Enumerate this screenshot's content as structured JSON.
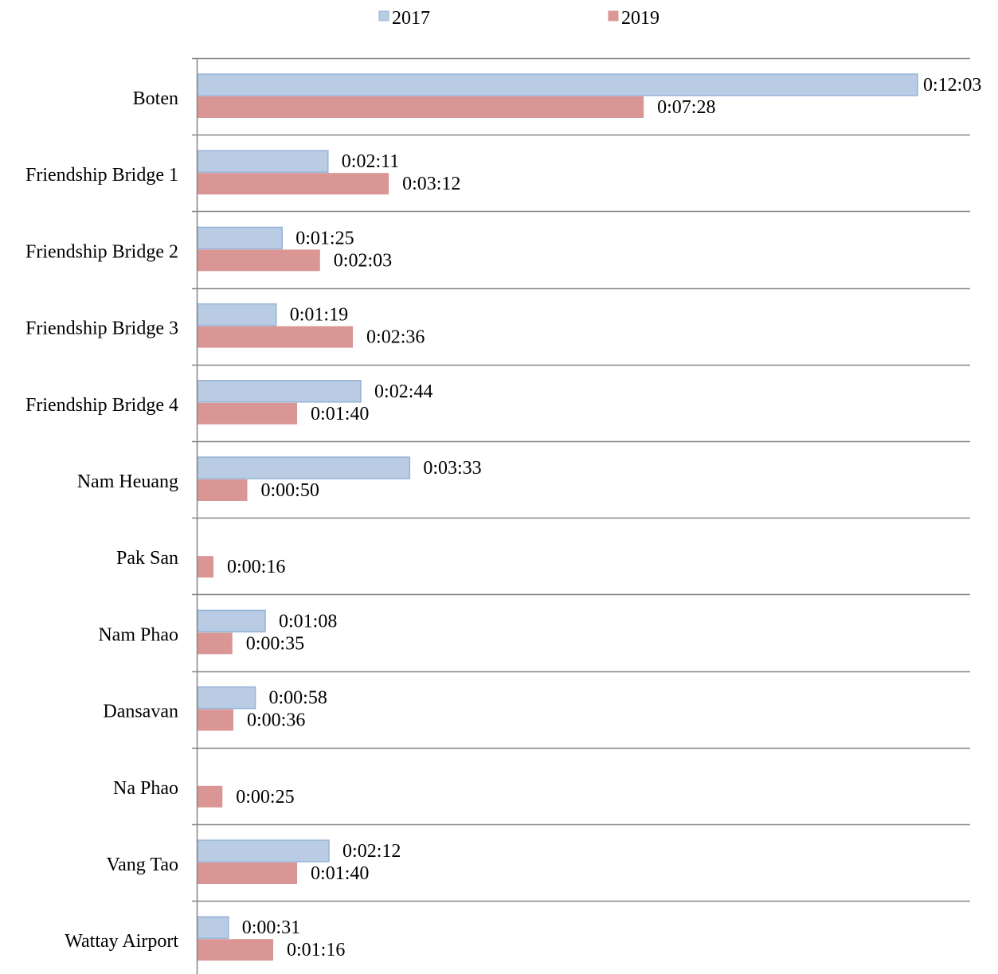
{
  "chart_data": {
    "type": "bar",
    "orientation": "horizontal",
    "title": "",
    "xlabel": "",
    "ylabel": "",
    "legend_position": "top",
    "grid": "horizontal separators between categories",
    "x_unit": "seconds",
    "xlim": [
      0,
      723
    ],
    "categories": [
      "Boten",
      "Friendship Bridge 1",
      "Friendship Bridge 2",
      "Friendship Bridge 3",
      "Friendship Bridge 4",
      "Nam Heuang",
      "Pak San",
      "Nam Phao",
      "Dansavan",
      "Na Phao",
      "Vang Tao",
      "Wattay Airport"
    ],
    "series": [
      {
        "name": "2017",
        "color": "#b9cce4",
        "border": "#95b3d7",
        "values_seconds": [
          723,
          131,
          85,
          79,
          164,
          213,
          null,
          68,
          58,
          null,
          132,
          31
        ],
        "labels": [
          "0:12:03",
          "0:02:11",
          "0:01:25",
          "0:01:19",
          "0:02:44",
          "0:03:33",
          "",
          "0:01:08",
          "0:00:58",
          "",
          "0:02:12",
          "0:00:31"
        ]
      },
      {
        "name": "2019",
        "color": "#d99694",
        "border": "#d99694",
        "values_seconds": [
          448,
          192,
          123,
          156,
          100,
          50,
          16,
          35,
          36,
          25,
          100,
          76
        ],
        "labels": [
          "0:07:28",
          "0:03:12",
          "0:02:03",
          "0:02:36",
          "0:01:40",
          "0:00:50",
          "0:00:16",
          "0:00:35",
          "0:00:36",
          "0:00:25",
          "0:01:40",
          "0:01:16"
        ]
      }
    ]
  }
}
